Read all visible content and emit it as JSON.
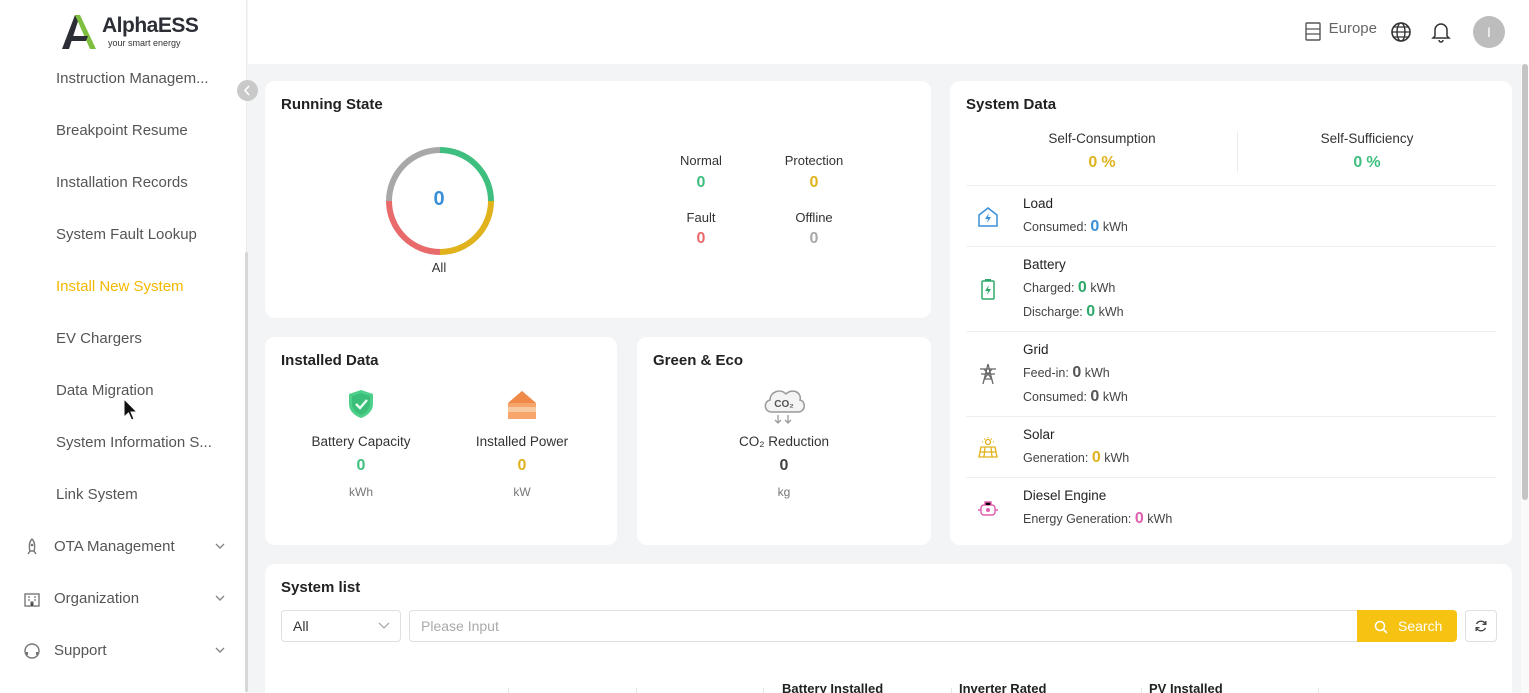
{
  "brand": {
    "name": "AlphaESS",
    "tagline": "your smart energy"
  },
  "sidebar": {
    "items": [
      {
        "label": "Instruction Managem...",
        "active": false
      },
      {
        "label": "Breakpoint Resume",
        "active": false
      },
      {
        "label": "Installation Records",
        "active": false
      },
      {
        "label": "System Fault Lookup",
        "active": false
      },
      {
        "label": "Install New System",
        "active": true
      },
      {
        "label": "EV Chargers",
        "active": false
      },
      {
        "label": "Data Migration",
        "active": false
      },
      {
        "label": "System Information S...",
        "active": false
      },
      {
        "label": "Link System",
        "active": false
      }
    ],
    "groups": [
      {
        "label": "OTA Management",
        "icon": "rocket-icon"
      },
      {
        "label": "Organization",
        "icon": "building-icon"
      },
      {
        "label": "Support",
        "icon": "headset-icon"
      }
    ],
    "active_color": "#f5b800"
  },
  "header": {
    "region": "Europe",
    "avatar_initial": "I"
  },
  "running_state": {
    "title": "Running State",
    "total": "0",
    "total_label": "All",
    "statuses": [
      {
        "label": "Normal",
        "value": "0",
        "color": "#3fbf7f"
      },
      {
        "label": "Protection",
        "value": "0",
        "color": "#e0b21c"
      },
      {
        "label": "Fault",
        "value": "0",
        "color": "#e86a6a"
      },
      {
        "label": "Offline",
        "value": "0",
        "color": "#a8a8a8"
      }
    ]
  },
  "installed_data": {
    "title": "Installed Data",
    "battery": {
      "label": "Battery Capacity",
      "value": "0",
      "unit": "kWh",
      "color": "#3fbf7f"
    },
    "power": {
      "label": "Installed Power",
      "value": "0",
      "unit": "kW",
      "color": "#e0b21c"
    }
  },
  "green_eco": {
    "title": "Green & Eco",
    "co2": {
      "label": "CO₂ Reduction",
      "value": "0",
      "unit": "kg",
      "icon_text": "CO₂"
    }
  },
  "system_data": {
    "title": "System Data",
    "self_consumption": {
      "label": "Self-Consumption",
      "value": "0",
      "unit": "%"
    },
    "self_sufficiency": {
      "label": "Self-Sufficiency",
      "value": "0",
      "unit": "%"
    },
    "load": {
      "title": "Load",
      "consumed_label": "Consumed:",
      "consumed": "0",
      "unit": "kWh"
    },
    "battery": {
      "title": "Battery",
      "charged_label": "Charged:",
      "charged": "0",
      "discharge_label": "Discharge:",
      "discharge": "0",
      "unit": "kWh"
    },
    "grid": {
      "title": "Grid",
      "feedin_label": "Feed-in:",
      "feedin": "0",
      "consumed_label": "Consumed:",
      "consumed": "0",
      "unit": "kWh"
    },
    "solar": {
      "title": "Solar",
      "generation_label": "Generation:",
      "generation": "0",
      "unit": "kWh"
    },
    "diesel": {
      "title": "Diesel Engine",
      "generation_label": "Energy Generation:",
      "generation": "0",
      "unit": "kWh"
    }
  },
  "system_list": {
    "title": "System list",
    "filter_value": "All",
    "search_placeholder": "Please Input",
    "search_label": "Search",
    "columns": [
      "Battery Installed",
      "Inverter Rated",
      "PV Installed"
    ]
  }
}
